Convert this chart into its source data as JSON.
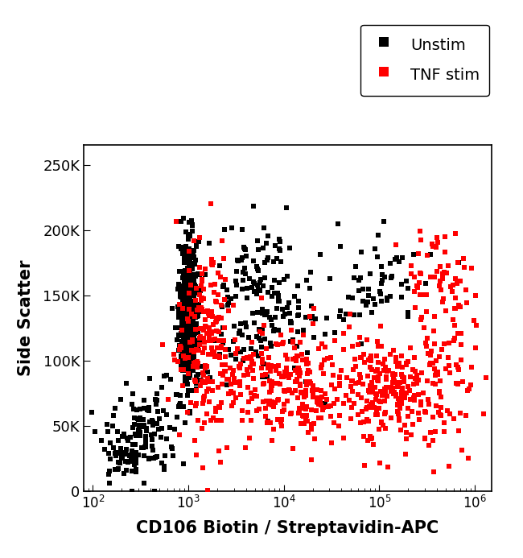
{
  "title": "",
  "xlabel": "CD106 Biotin / Streptavidin-APC",
  "ylabel": "Side Scatter",
  "legend_labels": [
    "Unstim",
    "TNF stim"
  ],
  "legend_colors": [
    "#000000",
    "#ff0000"
  ],
  "xlim": [
    80,
    1500000
  ],
  "ylim": [
    0,
    265000
  ],
  "yticks": [
    0,
    50000,
    100000,
    150000,
    200000,
    250000
  ],
  "ytick_labels": [
    "0",
    "50K",
    "100K",
    "150K",
    "200K",
    "250K"
  ],
  "background_color": "#ffffff",
  "marker_size": 16,
  "unstim_color": "#000000",
  "tnf_color": "#ff0000",
  "seed": 42,
  "n_unstim": 900,
  "n_tnf": 800
}
